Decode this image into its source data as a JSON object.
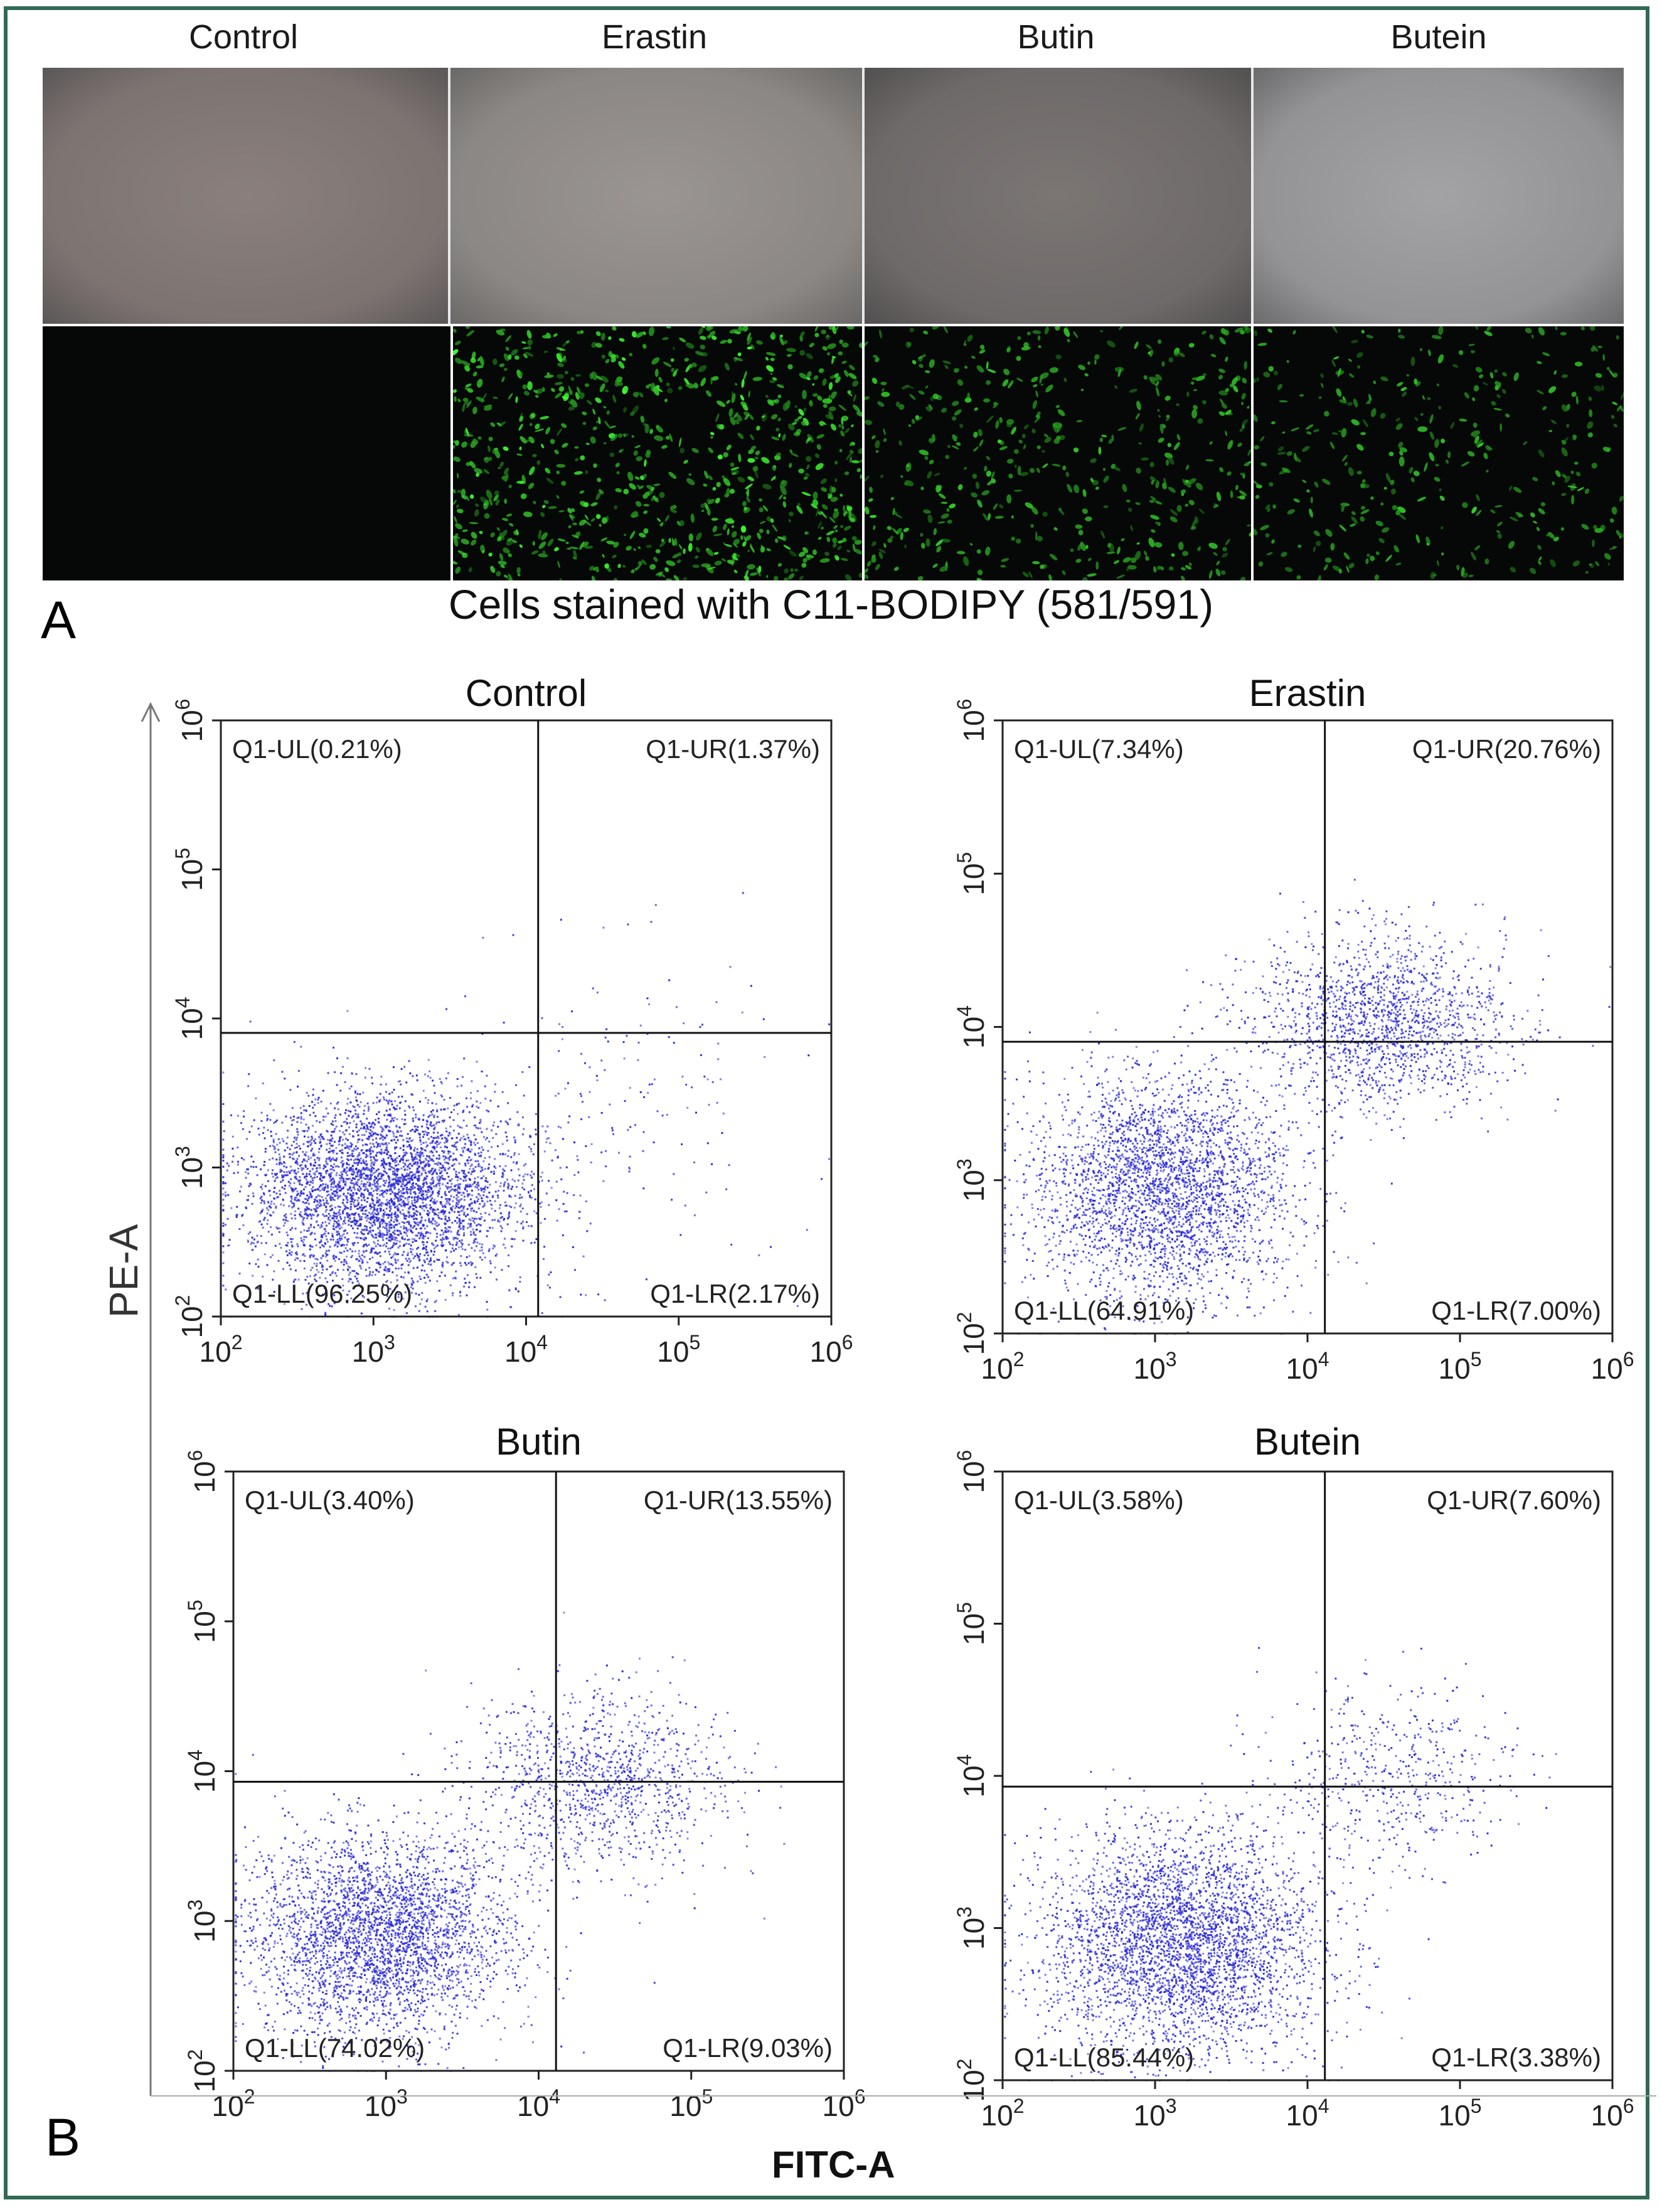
{
  "panel_a": {
    "letter": "A",
    "columns": [
      "Control",
      "Erastin",
      "Butin",
      "Butein"
    ],
    "caption": "Cells stained with C11-BODIPY (581/591)",
    "fluorescence_density": [
      0.0,
      1.0,
      0.55,
      0.4
    ]
  },
  "panel_b": {
    "letter": "B",
    "y_axis_label": "PE-A",
    "x_axis_label": "FITC-A"
  },
  "chart_data": [
    {
      "type": "scatter",
      "title": "Control",
      "xscale": "log",
      "yscale": "log",
      "xlim": [
        100,
        1000000
      ],
      "ylim": [
        100,
        1000000
      ],
      "x_ticks": [
        100,
        1000,
        10000,
        100000,
        1000000
      ],
      "y_ticks": [
        100,
        1000,
        10000,
        100000,
        1000000
      ],
      "gate": {
        "x": 12000,
        "y": 8000
      },
      "quadrants": {
        "UL": "Q1-UL(0.21%)",
        "UR": "Q1-UR(1.37%)",
        "LL": "Q1-LL(96.25%)",
        "LR": "Q1-LR(2.17%)"
      },
      "clusters": [
        {
          "cx": 1200,
          "cy": 700,
          "sx": 0.45,
          "sy": 0.32,
          "n": 4200
        },
        {
          "cx": 40000,
          "cy": 3000,
          "sx": 0.55,
          "sy": 0.55,
          "n": 160
        }
      ]
    },
    {
      "type": "scatter",
      "title": "Erastin",
      "xscale": "log",
      "yscale": "log",
      "xlim": [
        100,
        1000000
      ],
      "ylim": [
        100,
        1000000
      ],
      "x_ticks": [
        100,
        1000,
        10000,
        100000,
        1000000
      ],
      "y_ticks": [
        100,
        1000,
        10000,
        100000,
        1000000
      ],
      "gate": {
        "x": 13000,
        "y": 8000
      },
      "quadrants": {
        "UL": "Q1-UL(7.34%)",
        "UR": "Q1-UR(20.76%)",
        "LL": "Q1-LL(64.91%)",
        "LR": "Q1-LR(7.00%)"
      },
      "clusters": [
        {
          "cx": 1100,
          "cy": 900,
          "sx": 0.42,
          "sy": 0.36,
          "n": 3000
        },
        {
          "cx": 30000,
          "cy": 11000,
          "sx": 0.42,
          "sy": 0.28,
          "n": 1600
        }
      ]
    },
    {
      "type": "scatter",
      "title": "Butin",
      "xscale": "log",
      "yscale": "log",
      "xlim": [
        100,
        1000000
      ],
      "ylim": [
        100,
        1000000
      ],
      "x_ticks": [
        100,
        1000,
        10000,
        100000,
        1000000
      ],
      "y_ticks": [
        100,
        1000,
        10000,
        100000,
        1000000
      ],
      "gate": {
        "x": 13000,
        "y": 8500
      },
      "quadrants": {
        "UL": "Q1-UL(3.40%)",
        "UR": "Q1-UR(13.55%)",
        "LL": "Q1-LL(74.02%)",
        "LR": "Q1-LR(9.03%)"
      },
      "clusters": [
        {
          "cx": 900,
          "cy": 800,
          "sx": 0.42,
          "sy": 0.34,
          "n": 3200
        },
        {
          "cx": 25000,
          "cy": 8500,
          "sx": 0.42,
          "sy": 0.3,
          "n": 1100
        }
      ]
    },
    {
      "type": "scatter",
      "title": "Butein",
      "xscale": "log",
      "yscale": "log",
      "xlim": [
        100,
        1000000
      ],
      "ylim": [
        100,
        1000000
      ],
      "x_ticks": [
        100,
        1000,
        10000,
        100000,
        1000000
      ],
      "y_ticks": [
        100,
        1000,
        10000,
        100000,
        1000000
      ],
      "gate": {
        "x": 13000,
        "y": 8500
      },
      "quadrants": {
        "UL": "Q1-UL(3.58%)",
        "UR": "Q1-UR(7.60%)",
        "LL": "Q1-LL(85.44%)",
        "LR": "Q1-LR(3.38%)"
      },
      "clusters": [
        {
          "cx": 1500,
          "cy": 800,
          "sx": 0.45,
          "sy": 0.36,
          "n": 3600
        },
        {
          "cx": 35000,
          "cy": 10000,
          "sx": 0.42,
          "sy": 0.3,
          "n": 500
        }
      ]
    }
  ]
}
